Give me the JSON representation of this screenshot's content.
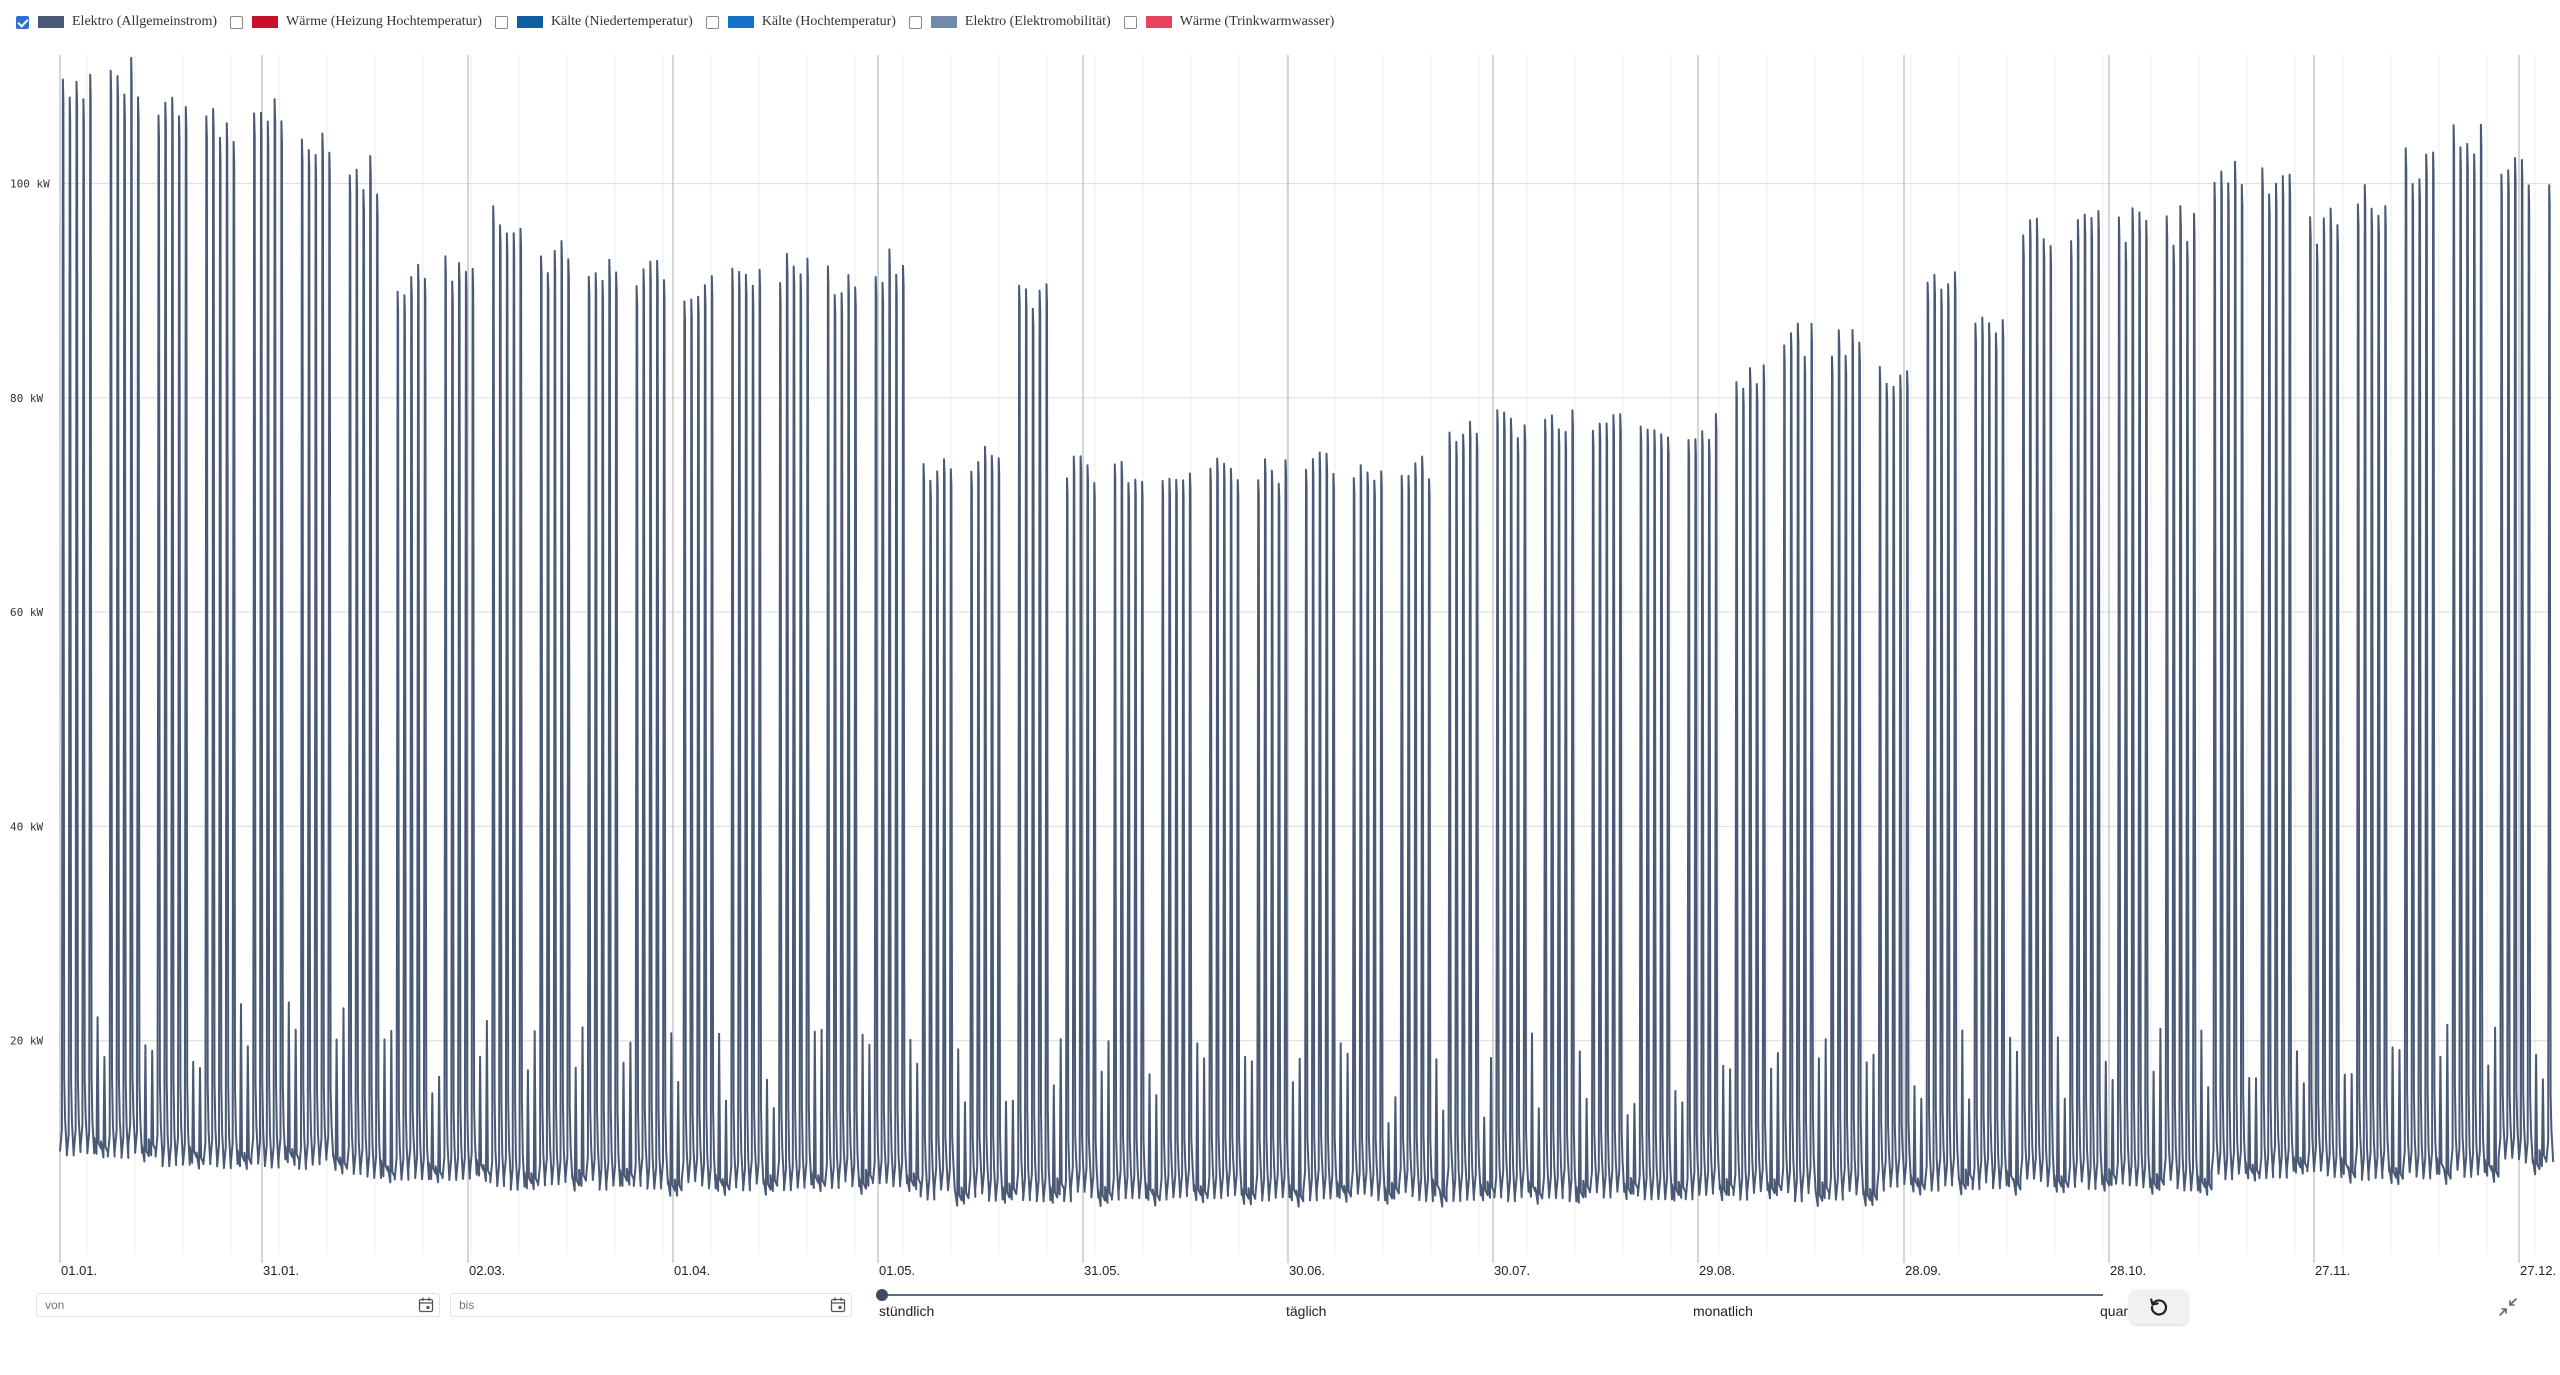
{
  "legend": [
    {
      "label": "Elektro (Allgemeinstrom)",
      "color": "#4a5a76",
      "checked": true
    },
    {
      "label": "Wärme (Heizung Hochtemperatur)",
      "color": "#c8102e",
      "checked": false
    },
    {
      "label": "Kälte (Niedertemperatur)",
      "color": "#0d5ea3",
      "checked": false
    },
    {
      "label": "Kälte (Hochtemperatur)",
      "color": "#1473c7",
      "checked": false
    },
    {
      "label": "Elektro (Elektromobilität)",
      "color": "#7389ab",
      "checked": false
    },
    {
      "label": "Wärme (Trinkwarmwasser)",
      "color": "#e8425e",
      "checked": false
    }
  ],
  "chart_data": {
    "type": "line",
    "title": "",
    "xlabel": "",
    "ylabel": "",
    "x_ticks": [
      "01.01.",
      "31.01.",
      "02.03.",
      "01.04.",
      "01.05.",
      "31.05.",
      "30.06.",
      "30.07.",
      "29.08.",
      "28.09.",
      "28.10.",
      "27.11.",
      "27.12."
    ],
    "y_ticks": [
      "20 kW",
      "40 kW",
      "60 kW",
      "80 kW",
      "100 kW"
    ],
    "xlim": [
      "01.01.",
      "31.12."
    ],
    "ylim": [
      0,
      112
    ],
    "grid": true,
    "line_color": "#4a5a76",
    "series": [
      {
        "name": "Elektro (Allgemeinstrom)",
        "unit": "kW",
        "pattern": "daily peaks on weekdays, low nighttime and weekend base load",
        "weekly_peak_kw": [
          112,
          112,
          110,
          108,
          109,
          106,
          103,
          93,
          94,
          99,
          95,
          93,
          94,
          92,
          94,
          94,
          93,
          94,
          75,
          76,
          92,
          75,
          75,
          75,
          75,
          75,
          75,
          75,
          75,
          79,
          79,
          79,
          79,
          79,
          79,
          84,
          87,
          87,
          84,
          93,
          89,
          98,
          98,
          98,
          98,
          103,
          103,
          98,
          100,
          104,
          106,
          103,
          104
        ],
        "base_load_kw": [
          8,
          8,
          7,
          7,
          7,
          7,
          6,
          6,
          6,
          5,
          5,
          5,
          5,
          5,
          5,
          5,
          5,
          5,
          4,
          4,
          4,
          4,
          4,
          4,
          4,
          4,
          4,
          4,
          4,
          4,
          4,
          4,
          4,
          4,
          4,
          4,
          4,
          4,
          5,
          5,
          5,
          5,
          5,
          5,
          5,
          6,
          6,
          6,
          6,
          6,
          6,
          7,
          7
        ]
      }
    ]
  },
  "controls": {
    "from_placeholder": "von",
    "to_placeholder": "bis",
    "resolution_options": [
      "stündlich",
      "täglich",
      "monatlich",
      "quar"
    ],
    "resolution_selected": "stündlich"
  }
}
